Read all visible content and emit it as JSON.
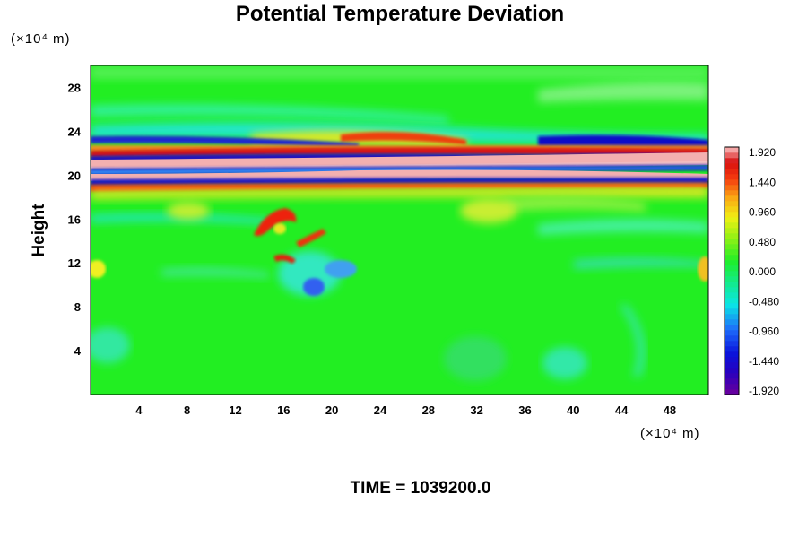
{
  "chart_data": {
    "type": "heatmap",
    "title": "Potential Temperature Deviation",
    "ylabel": "Height",
    "y_unit": "(×10⁴ m)",
    "x_unit": "(×10⁴ m)",
    "x_ticks": [
      4,
      8,
      12,
      16,
      20,
      24,
      28,
      32,
      36,
      40,
      44,
      48
    ],
    "y_ticks": [
      4,
      8,
      12,
      16,
      20,
      24,
      28
    ],
    "xlim": [
      0,
      51.2
    ],
    "ylim": [
      0,
      30
    ],
    "colorbar": {
      "labels": [
        "1.920",
        "1.440",
        "0.960",
        "0.480",
        "0.000",
        "-0.480",
        "-0.960",
        "-1.440",
        "-1.920"
      ],
      "min": -1.92,
      "max": 1.92
    },
    "footer": "TIME = 1039200.0",
    "colors": {
      "background_field": "#22ee22",
      "cold": "#1010c0",
      "warm": "#ee2010",
      "extreme_warm": "#f3b0b0"
    }
  }
}
